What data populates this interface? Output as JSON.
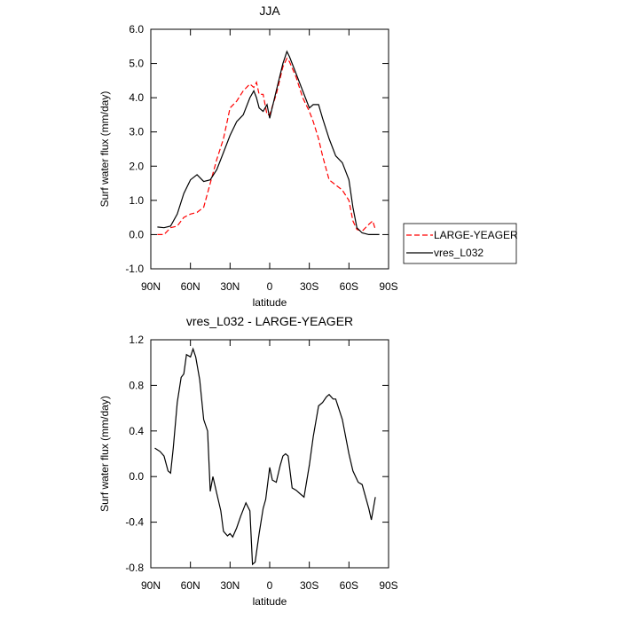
{
  "chart_data": [
    {
      "type": "line",
      "title": "JJA",
      "xlabel": "latitude",
      "ylabel": "Surf water flux (mm/day)",
      "x": [
        85,
        80,
        75,
        70,
        65,
        60,
        55,
        50,
        45,
        40,
        35,
        30,
        25,
        20,
        15,
        12,
        10,
        8,
        5,
        2,
        0,
        -5,
        -10,
        -13,
        -15,
        -20,
        -25,
        -30,
        -33,
        -37,
        -40,
        -45,
        -50,
        -55,
        -60,
        -63,
        -66,
        -70,
        -75,
        -78,
        -80,
        -83
      ],
      "series": [
        {
          "name": "LARGE-YEAGER",
          "color": "#ff0000",
          "dash": true,
          "values": [
            0.0,
            0.0,
            0.2,
            0.25,
            0.5,
            0.6,
            0.65,
            0.8,
            1.5,
            2.2,
            2.8,
            3.7,
            3.9,
            4.2,
            4.4,
            4.3,
            4.45,
            4.1,
            4.1,
            3.5,
            3.5,
            4.1,
            4.9,
            5.15,
            5.05,
            4.6,
            4.0,
            3.6,
            3.3,
            2.8,
            2.3,
            1.6,
            1.45,
            1.3,
            1.0,
            0.4,
            0.15,
            0.1,
            0.3,
            0.4,
            0.15,
            null
          ]
        },
        {
          "name": "vres_L032",
          "color": "#000000",
          "dash": false,
          "values": [
            0.22,
            0.2,
            0.25,
            0.6,
            1.2,
            1.6,
            1.75,
            1.55,
            1.6,
            1.9,
            2.4,
            2.9,
            3.3,
            3.5,
            4.0,
            4.2,
            4.0,
            3.7,
            3.6,
            3.8,
            3.4,
            4.2,
            5.0,
            5.35,
            5.2,
            4.7,
            4.2,
            3.7,
            3.8,
            3.8,
            3.4,
            2.8,
            2.3,
            2.1,
            1.6,
            0.8,
            0.2,
            0.05,
            0.0,
            0.0,
            0.0,
            0.0
          ]
        }
      ],
      "xlim": [
        90,
        -90
      ],
      "xticks": [
        {
          "value": 90,
          "label": "90N"
        },
        {
          "value": 60,
          "label": "60N"
        },
        {
          "value": 30,
          "label": "30N"
        },
        0,
        {
          "value": -30,
          "label": "30S"
        },
        {
          "value": -60,
          "label": "60S"
        },
        {
          "value": -90,
          "label": "90S"
        }
      ],
      "ylim": [
        -1,
        6
      ],
      "yticks": [
        {
          "value": -1,
          "label": "-1.0"
        },
        {
          "value": 0,
          "label": "0.0"
        },
        {
          "value": 1,
          "label": "1.0"
        },
        {
          "value": 2,
          "label": "2.0"
        },
        {
          "value": 3,
          "label": "3.0"
        },
        {
          "value": 4,
          "label": "4.0"
        },
        {
          "value": 5,
          "label": "5.0"
        },
        {
          "value": 6,
          "label": "6.0"
        }
      ],
      "legend": "outside-right"
    },
    {
      "type": "line",
      "title": "vres_L032 - LARGE-YEAGER",
      "xlabel": "latitude",
      "ylabel": "Surf water flux (mm/day)",
      "x": [
        87,
        83,
        80,
        77,
        75,
        73,
        70,
        67,
        65,
        63,
        60,
        58,
        56,
        53,
        50,
        47,
        45,
        43,
        40,
        37,
        35,
        32,
        30,
        28,
        25,
        22,
        18,
        15,
        13,
        11,
        8,
        5,
        3,
        0,
        -2,
        -5,
        -8,
        -10,
        -12,
        -14,
        -17,
        -20,
        -23,
        -26,
        -30,
        -33,
        -37,
        -40,
        -43,
        -45,
        -48,
        -50,
        -55,
        -60,
        -63,
        -65,
        -67,
        -70,
        -75,
        -77,
        -80
      ],
      "series": [
        {
          "color": "#000000",
          "dash": false,
          "values": [
            0.25,
            0.22,
            0.18,
            0.05,
            0.03,
            0.25,
            0.65,
            0.87,
            0.9,
            1.07,
            1.05,
            1.12,
            1.05,
            0.85,
            0.5,
            0.4,
            -0.13,
            0.0,
            -0.15,
            -0.3,
            -0.48,
            -0.52,
            -0.5,
            -0.53,
            -0.45,
            -0.35,
            -0.23,
            -0.3,
            -0.77,
            -0.75,
            -0.5,
            -0.28,
            -0.2,
            0.08,
            -0.03,
            -0.05,
            0.1,
            0.18,
            0.2,
            0.18,
            -0.1,
            -0.12,
            -0.15,
            -0.18,
            0.1,
            0.35,
            0.62,
            0.65,
            0.7,
            0.72,
            0.68,
            0.68,
            0.5,
            0.2,
            0.05,
            0.0,
            -0.05,
            -0.07,
            -0.28,
            -0.38,
            -0.18
          ]
        }
      ],
      "xlim": [
        90,
        -90
      ],
      "xticks": [
        {
          "value": 90,
          "label": "90N"
        },
        {
          "value": 60,
          "label": "60N"
        },
        {
          "value": 30,
          "label": "30N"
        },
        0,
        {
          "value": -30,
          "label": "30S"
        },
        {
          "value": -60,
          "label": "60S"
        },
        {
          "value": -90,
          "label": "90S"
        }
      ],
      "ylim": [
        -0.8,
        1.2
      ],
      "yticks": [
        -0.8,
        -0.4,
        {
          "value": 0,
          "label": "0.0"
        },
        0.4,
        0.8,
        1.2
      ]
    }
  ]
}
